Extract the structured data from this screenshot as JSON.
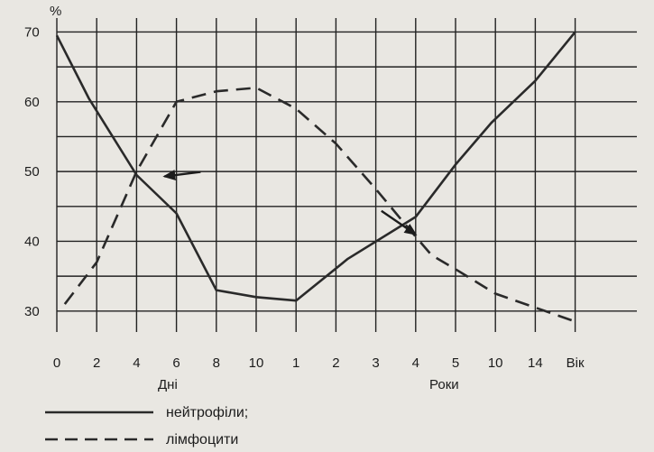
{
  "chart_data": {
    "type": "line",
    "title": "",
    "ylabel_unit": "%",
    "ylim": [
      27,
      72
    ],
    "y_ticks": [
      30,
      40,
      50,
      60,
      70
    ],
    "x_ticks": [
      "0",
      "2",
      "4",
      "6",
      "8",
      "10",
      "1",
      "2",
      "3",
      "4",
      "5",
      "10",
      "14",
      "Вік"
    ],
    "x_group_labels": {
      "days": "Дні",
      "years": "Роки"
    },
    "grid": true,
    "series": [
      {
        "name": "нейтрофіли;",
        "style": "solid",
        "x": [
          0,
          0.8,
          2,
          3,
          4,
          5,
          6,
          7.3,
          9,
          10,
          10.9,
          12,
          13
        ],
        "y": [
          69.5,
          60.5,
          49.5,
          44,
          33,
          32,
          31.5,
          37.5,
          43.5,
          51,
          57,
          63,
          70
        ]
      },
      {
        "name": "лімфоцити",
        "style": "dashed",
        "x": [
          0.2,
          1,
          2,
          3,
          4,
          5,
          6,
          7,
          8,
          8.8,
          9.4,
          10,
          11,
          12,
          13
        ],
        "y": [
          31,
          37,
          50,
          60,
          61.5,
          62,
          59,
          54,
          47.5,
          42,
          38,
          36,
          32.5,
          30.5,
          28.5
        ]
      }
    ],
    "annotations": [
      {
        "type": "arrow",
        "x": 2.7,
        "y": 49.3
      },
      {
        "type": "arrow",
        "x": 9,
        "y": 41
      }
    ],
    "legend_placement": "bottom-left"
  }
}
